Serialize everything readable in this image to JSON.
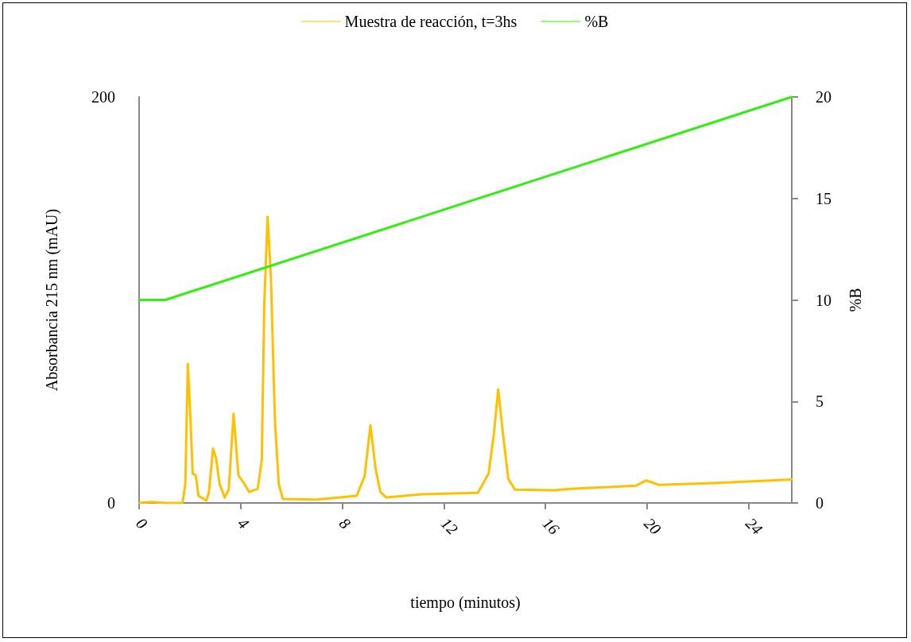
{
  "chart_data": {
    "type": "line",
    "xlabel": "tiempo (minutos)",
    "ylabel": "Absorbancia 215 nm (mAU)",
    "y2label": "%B",
    "xlim": [
      0,
      25.7
    ],
    "xticks": [
      0,
      4,
      8,
      12,
      16,
      20,
      24
    ],
    "ylim": [
      0,
      200
    ],
    "yticks": [
      0,
      200
    ],
    "y2lim": [
      0,
      20
    ],
    "y2ticks": [
      0,
      5,
      10,
      15,
      20
    ],
    "grid": false,
    "legend": "top",
    "marker": "none",
    "line_style": "solid",
    "series": [
      {
        "name": "Muestra de reacción, t=3hs",
        "color": "#ffc000",
        "x": [
          0,
          0.5,
          1.0,
          1.71,
          1.82,
          1.92,
          2.02,
          2.11,
          2.23,
          2.34,
          2.65,
          2.75,
          2.91,
          3.03,
          3.17,
          3.37,
          3.53,
          3.72,
          3.91,
          4.15,
          4.33,
          4.67,
          4.83,
          4.93,
          5.06,
          5.19,
          5.35,
          5.5,
          5.66,
          7.0,
          8.57,
          8.88,
          9.11,
          9.31,
          9.5,
          9.73,
          11.16,
          13.34,
          13.76,
          13.97,
          14.14,
          14.33,
          14.54,
          14.8,
          16.36,
          16.98,
          19.57,
          19.97,
          20.46,
          22.6,
          25.7
        ],
        "values": [
          0,
          0.5,
          0,
          0,
          9.3,
          68.5,
          41.5,
          14.4,
          13.6,
          3.5,
          1.2,
          5.4,
          26.8,
          22,
          9.3,
          2.7,
          6.6,
          43.9,
          13.7,
          9.3,
          5.4,
          7,
          21,
          98.6,
          141,
          111,
          40,
          9.3,
          2,
          1.7,
          3.5,
          13.2,
          38.3,
          17,
          5.4,
          2.7,
          4.3,
          5,
          14.4,
          33.8,
          56,
          33.8,
          11.8,
          6.6,
          6.3,
          6.9,
          8.5,
          11.1,
          8.9,
          9.8,
          11.5
        ]
      },
      {
        "name": "%B",
        "color": "#33ee11",
        "axis": "y2",
        "x": [
          0,
          1.03,
          25.7
        ],
        "values": [
          10,
          10,
          20
        ]
      }
    ]
  }
}
